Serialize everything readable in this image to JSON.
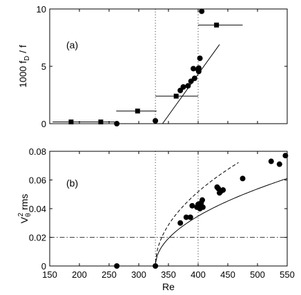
{
  "chart_data": [
    {
      "panel": "a",
      "type": "scatter",
      "annotation": "(a)",
      "ylabel": "1000 f_D / f",
      "xlabel": "",
      "xlim": [
        150,
        550
      ],
      "ylim": [
        0,
        10
      ],
      "xticks": [
        150,
        200,
        250,
        300,
        350,
        400,
        450,
        500,
        550
      ],
      "yticks": [
        0,
        5,
        10
      ],
      "x_tick_labels_visible": false,
      "vlines_dotted": [
        328,
        400
      ],
      "series": [
        {
          "marker": "circle",
          "points": [
            [
              263,
              0.0
            ],
            [
              328,
              0.25
            ],
            [
              383,
              3.3
            ],
            [
              388,
              3.7
            ],
            [
              394,
              3.95
            ],
            [
              392,
              4.8
            ],
            [
              400,
              4.7
            ],
            [
              401,
              4.55
            ],
            [
              401,
              4.85
            ],
            [
              403,
              5.7
            ],
            [
              406,
              9.8
            ],
            [
              370,
              2.9
            ],
            [
              375,
              3.2
            ]
          ]
        },
        {
          "marker": "square",
          "points": [
            [
              186,
              0.15
            ],
            [
              236,
              0.15
            ],
            [
              298,
              1.1
            ],
            [
              363,
              2.4
            ],
            [
              431,
              8.6
            ]
          ],
          "xerr": [
            [
              155,
              262
            ],
            [
              204,
              262
            ],
            [
              262,
              330
            ],
            [
              328,
              400
            ],
            [
              400,
              475
            ]
          ]
        }
      ],
      "fit_line": [
        [
          263,
          0.0
        ],
        [
          340,
          0.0
        ],
        [
          436,
          6.9
        ]
      ]
    },
    {
      "panel": "b",
      "type": "scatter",
      "annotation": "(b)",
      "ylabel": "V_θ^2 rms",
      "xlabel": "Re",
      "xlim": [
        150,
        550
      ],
      "ylim": [
        0,
        0.08
      ],
      "xticks": [
        150,
        200,
        250,
        300,
        350,
        400,
        450,
        500,
        550
      ],
      "yticks": [
        0,
        0.02,
        0.04,
        0.06,
        0.08
      ],
      "xtick_labels": [
        "150",
        "200",
        "250",
        "300",
        "350",
        "400",
        "450",
        "500",
        "550"
      ],
      "ytick_labels": [
        "0",
        "0.02",
        "0.04",
        "0.06",
        "0.08"
      ],
      "vlines_dotted": [
        328,
        400
      ],
      "hline_dashdot": 0.02,
      "series": [
        {
          "marker": "circle",
          "points": [
            [
              263,
              0.0
            ],
            [
              328,
              0.0
            ],
            [
              370,
              0.03
            ],
            [
              380,
              0.034
            ],
            [
              387,
              0.034
            ],
            [
              390,
              0.042
            ],
            [
              398,
              0.041
            ],
            [
              400,
              0.043
            ],
            [
              402,
              0.042
            ],
            [
              403,
              0.04
            ],
            [
              405,
              0.044
            ],
            [
              407,
              0.046
            ],
            [
              408,
              0.041
            ],
            [
              432,
              0.055
            ],
            [
              434,
              0.054
            ],
            [
              436,
              0.051
            ],
            [
              438,
              0.052
            ],
            [
              442,
              0.053
            ],
            [
              475,
              0.061
            ],
            [
              523,
              0.073
            ],
            [
              537,
              0.071
            ],
            [
              547,
              0.077
            ]
          ]
        }
      ],
      "fit_curve_solid": {
        "re_c": 328,
        "a": 0.0041
      },
      "fit_curve_dashed": {
        "re_c": 328,
        "a": 0.0061
      }
    }
  ]
}
